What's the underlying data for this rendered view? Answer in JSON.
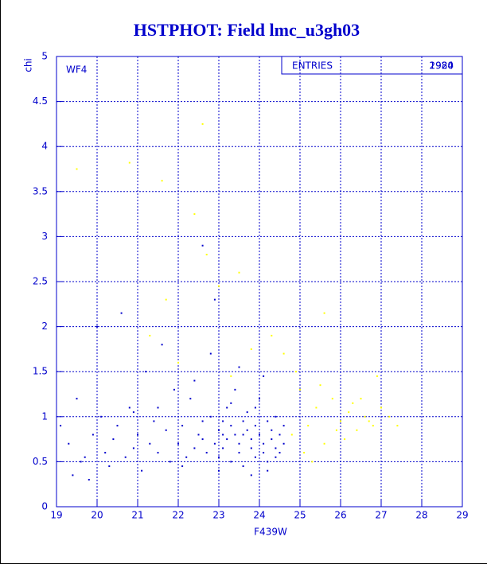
{
  "chart_data": {
    "type": "scatter",
    "title": "HSTPHOT: Field lmc_u3gh03",
    "xlabel": "F439W",
    "ylabel": "chi",
    "panel_label": "WF4",
    "stats_label": "ENTRIES",
    "stats_values": [
      "2924",
      "1980"
    ],
    "xlim": [
      19,
      29
    ],
    "xticks": [
      19,
      20,
      21,
      22,
      23,
      24,
      25,
      26,
      27,
      28,
      29
    ],
    "ylim": [
      0,
      5
    ],
    "yticks": [
      0,
      0.5,
      1,
      1.5,
      2,
      2.5,
      3,
      3.5,
      4,
      4.5,
      5
    ],
    "grid": true,
    "series": [
      {
        "color": "#0000cc",
        "x": [
          19.1,
          19.3,
          19.4,
          19.5,
          19.6,
          19.7,
          19.8,
          19.9,
          20.0,
          20.1,
          20.2,
          20.3,
          20.4,
          20.5,
          20.6,
          20.7,
          20.8,
          20.9,
          21.0,
          21.1,
          21.2,
          21.3,
          21.4,
          21.5,
          21.6,
          21.7,
          21.8,
          21.9,
          22.0,
          22.1,
          22.2,
          22.3,
          22.4,
          22.5,
          22.6,
          22.6,
          22.7,
          22.8,
          22.9,
          22.9,
          23.0,
          23.0,
          23.1,
          23.1,
          23.2,
          23.2,
          23.3,
          23.3,
          23.4,
          23.4,
          23.5,
          23.5,
          23.6,
          23.6,
          23.7,
          23.7,
          23.8,
          23.8,
          23.9,
          23.9,
          24.0,
          24.0,
          24.1,
          24.1,
          24.2,
          24.2,
          24.3,
          24.3,
          24.4,
          24.4,
          24.5,
          24.5,
          24.6,
          24.6,
          22.4,
          22.8,
          23.5,
          24.1,
          23.0,
          23.8,
          24.2,
          21.5,
          20.9,
          22.1,
          23.3,
          22.6,
          23.9,
          24.4,
          23.6,
          23.1
        ],
        "values": [
          0.9,
          0.7,
          0.35,
          1.2,
          0.5,
          0.55,
          0.3,
          0.8,
          2.0,
          1.0,
          0.6,
          0.45,
          0.75,
          0.9,
          2.15,
          0.55,
          1.1,
          0.65,
          0.8,
          0.4,
          1.5,
          0.7,
          0.95,
          0.6,
          1.8,
          0.85,
          0.5,
          1.3,
          0.7,
          0.9,
          0.55,
          1.2,
          0.65,
          0.8,
          2.9,
          0.75,
          0.6,
          1.0,
          2.3,
          0.7,
          0.85,
          0.55,
          0.95,
          0.65,
          1.1,
          0.75,
          0.5,
          0.9,
          0.8,
          1.3,
          0.6,
          0.7,
          0.95,
          0.45,
          0.85,
          1.05,
          0.65,
          0.75,
          0.9,
          0.55,
          0.8,
          1.2,
          0.7,
          0.6,
          0.95,
          0.5,
          0.85,
          0.75,
          0.65,
          1.0,
          0.6,
          0.8,
          0.7,
          0.9,
          1.4,
          1.7,
          1.55,
          1.45,
          0.4,
          0.35,
          0.4,
          1.1,
          1.05,
          0.45,
          1.15,
          0.95,
          1.1,
          0.55,
          0.8,
          0.8
        ]
      },
      {
        "color": "#ffff00",
        "x": [
          19.5,
          20.8,
          21.6,
          22.6,
          22.4,
          22.7,
          23.5,
          21.7,
          23.0,
          24.3,
          25.6,
          26.9,
          27.2,
          25.0,
          25.2,
          25.4,
          25.6,
          25.8,
          26.0,
          26.2,
          26.4,
          26.6,
          26.8,
          27.0,
          24.8,
          25.1,
          25.5,
          26.1,
          26.5,
          25.3,
          24.9,
          26.3,
          25.9,
          26.7,
          27.4,
          21.3,
          22.0,
          23.8,
          24.6,
          23.3
        ],
        "values": [
          3.75,
          3.82,
          3.62,
          4.25,
          3.25,
          2.8,
          2.6,
          2.3,
          2.45,
          1.9,
          2.15,
          1.45,
          1.0,
          1.3,
          0.9,
          1.1,
          0.7,
          1.2,
          0.95,
          1.05,
          0.85,
          1.0,
          0.9,
          1.1,
          0.8,
          0.6,
          1.35,
          0.75,
          1.2,
          0.5,
          1.5,
          1.15,
          0.85,
          0.95,
          0.9,
          1.9,
          1.6,
          1.75,
          1.7,
          1.45
        ]
      }
    ]
  }
}
